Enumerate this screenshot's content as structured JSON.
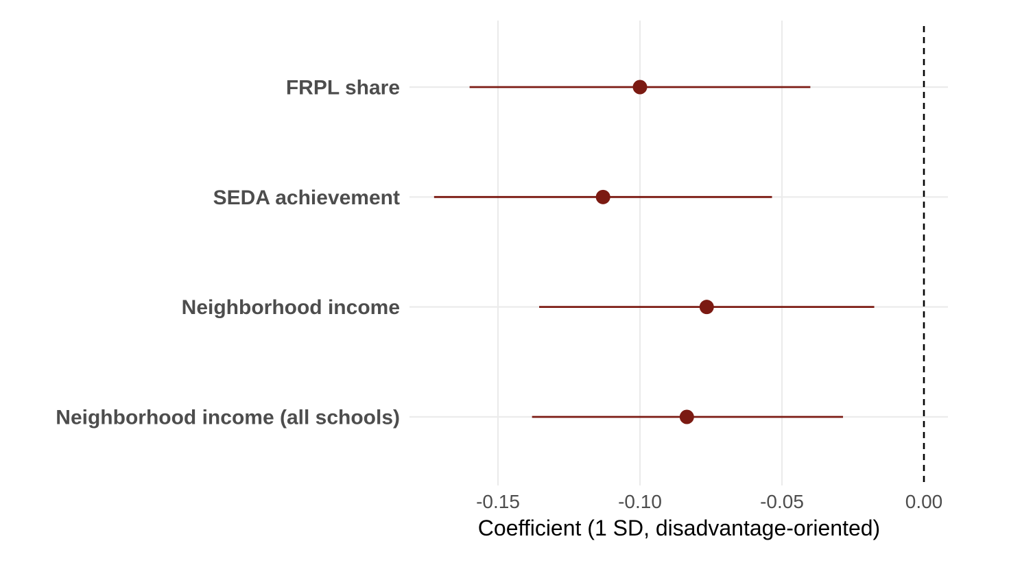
{
  "chart_data": {
    "type": "forest",
    "title": "",
    "xlabel": "Coefficient (1 SD, disadvantage-oriented)",
    "ylabel": "",
    "xlim": [
      -0.188,
      0.008
    ],
    "x_ticks": [
      -0.15,
      -0.1,
      -0.05,
      0.0
    ],
    "x_tick_labels": [
      "-0.15",
      "-0.10",
      "-0.05",
      "0.00"
    ],
    "reference_line": {
      "x": 0.0,
      "style": "dashed",
      "color": "#000000"
    },
    "grid": true,
    "legend": "none",
    "color": "#7b1a12",
    "categories": [
      "FRPL share",
      "SEDA achievement",
      "Neighborhood income",
      "Neighborhood income (all schools)"
    ],
    "estimates": [
      -0.1,
      -0.113,
      -0.0765,
      -0.0835
    ],
    "ci_low": [
      -0.16,
      -0.1725,
      -0.1355,
      -0.138
    ],
    "ci_high": [
      -0.04,
      -0.0535,
      -0.0175,
      -0.0285
    ]
  }
}
